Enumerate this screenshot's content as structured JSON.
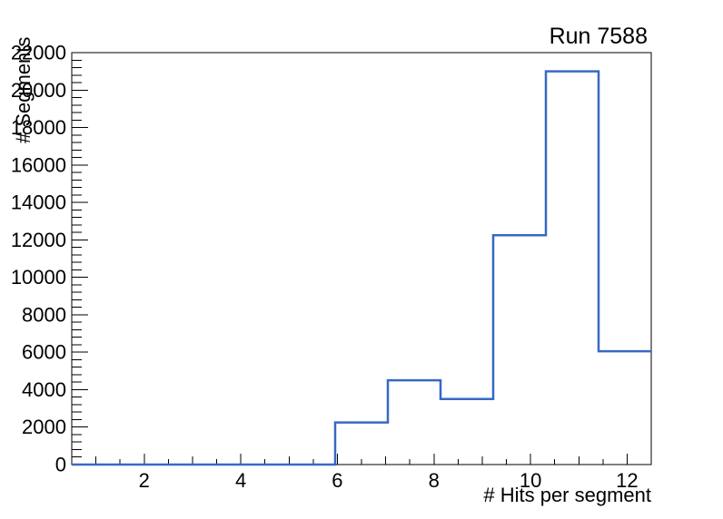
{
  "window": {
    "background_color": "#ffffff"
  },
  "chart_data": {
    "type": "histogram-step",
    "title": "Run 7588",
    "xlabel": "# Hits per segment",
    "ylabel": "# Segments",
    "xlim": [
      0.5,
      12.5
    ],
    "ylim": [
      0,
      22000
    ],
    "x_major_ticks": [
      2,
      4,
      6,
      8,
      10,
      12
    ],
    "y_major_ticks": [
      0,
      2000,
      4000,
      6000,
      8000,
      10000,
      12000,
      14000,
      16000,
      18000,
      20000,
      22000
    ],
    "x_minor_tick_step": 0.5,
    "y_minor_tick_step": 400,
    "grid": false,
    "legend": null,
    "line_color": "#3769c4",
    "frame_color": "#000000",
    "bins": {
      "count": 11,
      "edges": [
        0.5,
        1.5909,
        2.6818,
        3.7727,
        4.8636,
        5.9545,
        7.0455,
        8.1364,
        9.2273,
        10.3182,
        11.4091,
        12.5
      ],
      "values": [
        0,
        0,
        0,
        0,
        0,
        2250,
        4500,
        3500,
        12250,
        21000,
        6050
      ]
    }
  }
}
